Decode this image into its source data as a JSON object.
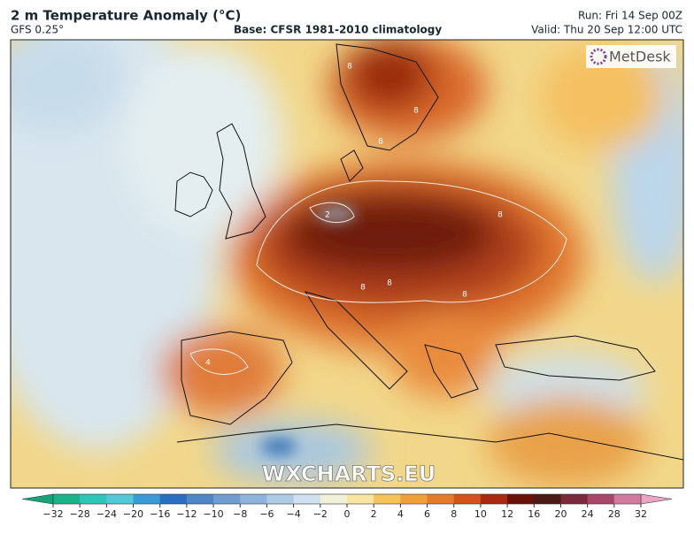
{
  "header": {
    "title": "2 m Temperature Anomaly (°C)",
    "model": "GFS 0.25°",
    "base": "Base: CFSR 1981-2010 climatology",
    "run": "Run: Fri 14 Sep 00Z",
    "valid": "Valid: Thu 20 Sep 12:00 UTC"
  },
  "map": {
    "logo": "MetDesk",
    "watermark": "WXCHARTS.EU",
    "contour_labels": [
      "8",
      "8",
      "8",
      "2",
      "8",
      "8",
      "8",
      "8",
      "4"
    ]
  },
  "colorbar": {
    "ticks": [
      {
        "value": -32,
        "label": "−32"
      },
      {
        "value": -28,
        "label": "−28"
      },
      {
        "value": -24,
        "label": "−24"
      },
      {
        "value": -20,
        "label": "−20"
      },
      {
        "value": -16,
        "label": "−16"
      },
      {
        "value": -12,
        "label": "−12"
      },
      {
        "value": -10,
        "label": "−10"
      },
      {
        "value": -8,
        "label": "−8"
      },
      {
        "value": -6,
        "label": "−6"
      },
      {
        "value": -4,
        "label": "−4"
      },
      {
        "value": -2,
        "label": "−2"
      },
      0,
      2,
      4,
      6,
      8,
      10,
      12,
      16,
      20,
      24,
      28,
      32
    ]
  }
}
